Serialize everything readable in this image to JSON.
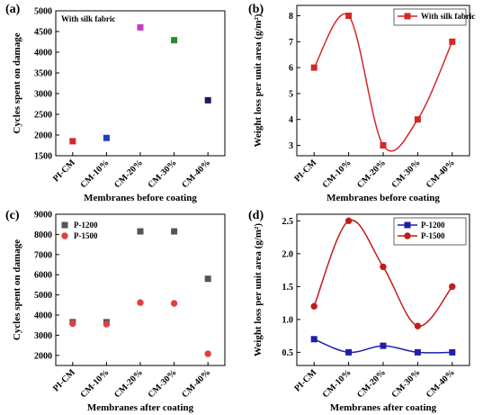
{
  "chart_data": [
    {
      "panel_label": "(a)",
      "type": "scatter",
      "categories": [
        "PI-CM",
        "CM-10%",
        "CM-20%",
        "CM-30%",
        "CM-40%"
      ],
      "ylabel": "Cycles spent on damage",
      "xlabel": "Membranes before coating",
      "ylim": [
        1500,
        5000
      ],
      "yticks": [
        1500,
        2000,
        2500,
        3000,
        3500,
        4000,
        4500,
        5000
      ],
      "legend_text": "With silk fabric",
      "legend_position": "top-left",
      "series": [
        {
          "values": [
            1850,
            1930,
            4600,
            4290,
            2840
          ],
          "point_colors": [
            "#d62728",
            "#1f3fbf",
            "#c040c0",
            "#2a8a2a",
            "#1a1a6a"
          ]
        }
      ]
    },
    {
      "panel_label": "(b)",
      "type": "line",
      "smooth": true,
      "categories": [
        "PI-CM",
        "CM-10%",
        "CM-20%",
        "CM-30%",
        "CM-40%"
      ],
      "ylabel": "Weight loss per unit area (g/m²)",
      "xlabel": "Membranes before coating",
      "ylim": [
        2.6,
        8.4
      ],
      "yticks": [
        3,
        4,
        5,
        6,
        7,
        8
      ],
      "legend_position": "top-right",
      "series": [
        {
          "name": "With silk fabric",
          "values": [
            6,
            8,
            3,
            4,
            7
          ],
          "color": "#d62728",
          "marker": "square"
        }
      ]
    },
    {
      "panel_label": "(c)",
      "type": "scatter",
      "categories": [
        "PI-CM",
        "CM-10%",
        "CM-20%",
        "CM-30%",
        "CM-40%"
      ],
      "ylabel": "Cycles spent on damage",
      "xlabel": "Membranes after coating",
      "ylim": [
        1500,
        9000
      ],
      "yticks": [
        2000,
        3000,
        4000,
        5000,
        6000,
        7000,
        8000,
        9000
      ],
      "legend_position": "top-left",
      "series": [
        {
          "name": "P-1200",
          "values": [
            3650,
            3650,
            8150,
            8150,
            5800
          ],
          "color": "#555555",
          "marker": "square"
        },
        {
          "name": "P-1500",
          "values": [
            3580,
            3550,
            4620,
            4580,
            2080
          ],
          "color": "#e04040",
          "marker": "circle"
        }
      ]
    },
    {
      "panel_label": "(d)",
      "type": "line",
      "smooth": true,
      "categories": [
        "PI-CM",
        "CM-10%",
        "CM-20%",
        "CM-30%",
        "CM-40%"
      ],
      "ylabel": "Weight loss per unit area (g/m²)",
      "xlabel": "Membranes after coating",
      "ylim": [
        0.3,
        2.6
      ],
      "yticks": [
        0.5,
        1.0,
        1.5,
        2.0,
        2.5
      ],
      "legend_position": "top-right",
      "series": [
        {
          "name": "P-1200",
          "values": [
            0.7,
            0.5,
            0.6,
            0.5,
            0.5
          ],
          "color": "#1f1fa8",
          "marker": "square"
        },
        {
          "name": "P-1500",
          "values": [
            1.2,
            2.5,
            1.8,
            0.9,
            1.5
          ],
          "color": "#c41a1a",
          "marker": "circle"
        }
      ]
    }
  ]
}
